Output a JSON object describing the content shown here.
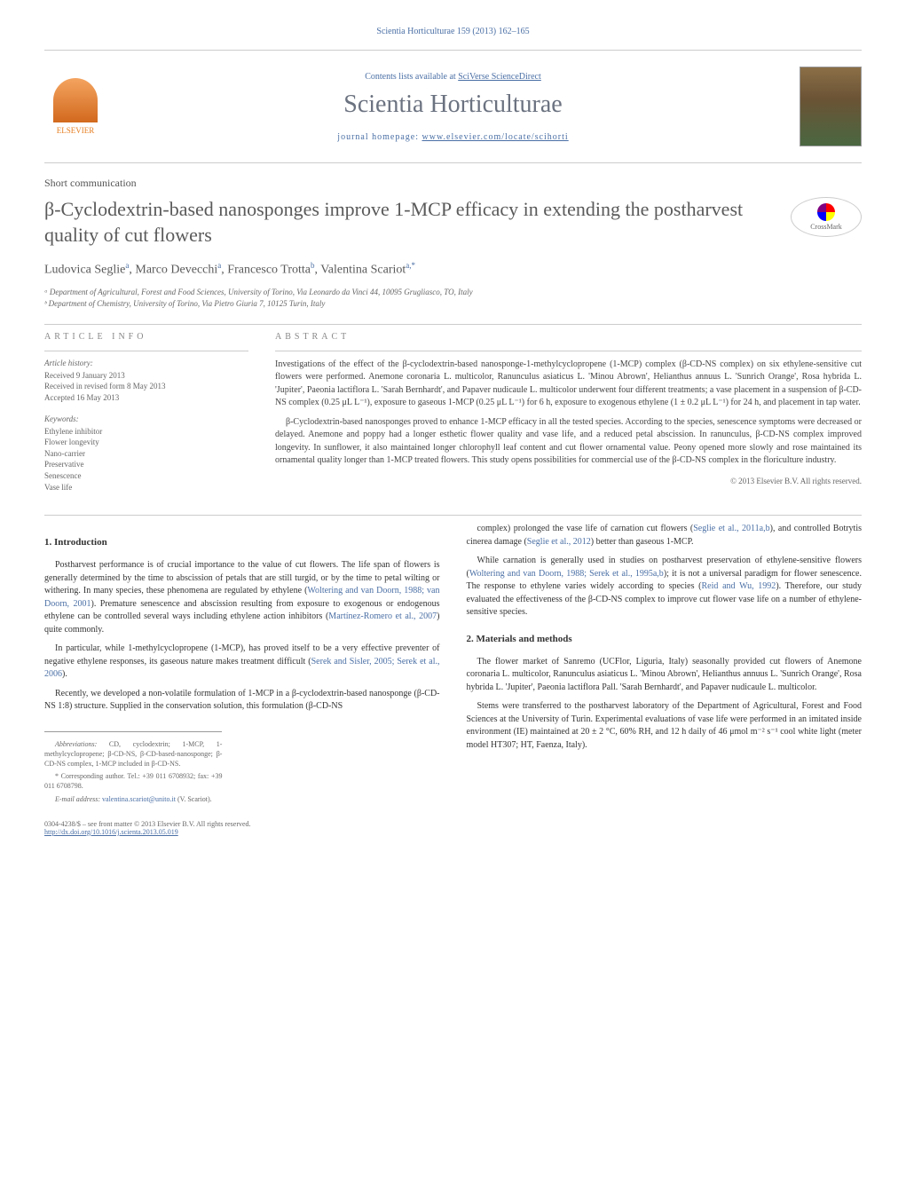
{
  "header": {
    "citation": "Scientia Horticulturae 159 (2013) 162–165",
    "contents_prefix": "Contents lists available at ",
    "contents_link": "SciVerse ScienceDirect",
    "journal_name": "Scientia Horticulturae",
    "homepage_prefix": "journal homepage: ",
    "homepage_url": "www.elsevier.com/locate/scihorti",
    "publisher": "ELSEVIER"
  },
  "article": {
    "type": "Short communication",
    "title": "β-Cyclodextrin-based nanosponges improve 1-MCP efficacy in extending the postharvest quality of cut flowers",
    "crossmark": "CrossMark"
  },
  "authors": {
    "line": "Ludovica Seglie",
    "a1_sup": "a",
    "a2": ", Marco Devecchi",
    "a2_sup": "a",
    "a3": ", Francesco Trotta",
    "a3_sup": "b",
    "a4": ", Valentina Scariot",
    "a4_sup": "a,*"
  },
  "affiliations": {
    "a": "ᵃ Department of Agricultural, Forest and Food Sciences, University of Torino, Via Leonardo da Vinci 44, 10095 Grugliasco, TO, Italy",
    "b": "ᵇ Department of Chemistry, University of Torino, Via Pietro Giuria 7, 10125 Turin, Italy"
  },
  "info": {
    "section_label": "article info",
    "history_label": "Article history:",
    "received": "Received 9 January 2013",
    "revised": "Received in revised form 8 May 2013",
    "accepted": "Accepted 16 May 2013",
    "keywords_label": "Keywords:",
    "keywords": [
      "Ethylene inhibitor",
      "Flower longevity",
      "Nano-carrier",
      "Preservative",
      "Senescence",
      "Vase life"
    ]
  },
  "abstract": {
    "label": "abstract",
    "p1": "Investigations of the effect of the β-cyclodextrin-based nanosponge-1-methylcyclopropene (1-MCP) complex (β-CD-NS complex) on six ethylene-sensitive cut flowers were performed. Anemone coronaria L. multicolor, Ranunculus asiaticus L. 'Minou Abrown', Helianthus annuus L. 'Sunrich Orange', Rosa hybrida L. 'Jupiter', Paeonia lactiflora L. 'Sarah Bernhardt', and Papaver nudicaule L. multicolor underwent four different treatments; a vase placement in a suspension of β-CD-NS complex (0.25 μL L⁻¹), exposure to gaseous 1-MCP (0.25 μL L⁻¹) for 6 h, exposure to exogenous ethylene (1 ± 0.2 μL L⁻¹) for 24 h, and placement in tap water.",
    "p2": "β-Cyclodextrin-based nanosponges proved to enhance 1-MCP efficacy in all the tested species. According to the species, senescence symptoms were decreased or delayed. Anemone and poppy had a longer esthetic flower quality and vase life, and a reduced petal abscission. In ranunculus, β-CD-NS complex improved longevity. In sunflower, it also maintained longer chlorophyll leaf content and cut flower ornamental value. Peony opened more slowly and rose maintained its ornamental quality longer than 1-MCP treated flowers. This study opens possibilities for commercial use of the β-CD-NS complex in the floriculture industry.",
    "copyright": "© 2013 Elsevier B.V. All rights reserved."
  },
  "body": {
    "intro_heading": "1. Introduction",
    "intro_p1": "Postharvest performance is of crucial importance to the value of cut flowers. The life span of flowers is generally determined by the time to abscission of petals that are still turgid, or by the time to petal wilting or withering. In many species, these phenomena are regulated by ethylene (",
    "intro_p1_link1": "Woltering and van Doorn, 1988; van Doorn, 2001",
    "intro_p1_cont": "). Premature senescence and abscission resulting from exposure to exogenous or endogenous ethylene can be controlled several ways including ethylene action inhibitors (",
    "intro_p1_link2": "Martínez-Romero et al., 2007",
    "intro_p1_end": ") quite commonly.",
    "intro_p2": "In particular, while 1-methylcyclopropene (1-MCP), has proved itself to be a very effective preventer of negative ethylene responses, its gaseous nature makes treatment difficult (",
    "intro_p2_link": "Serek and Sisler, 2005; Serek et al., 2006",
    "intro_p2_end": ").",
    "intro_p3": "Recently, we developed a non-volatile formulation of 1-MCP in a β-cyclodextrin-based nanosponge (β-CD-NS 1:8) structure. Supplied in the conservation solution, this formulation (β-CD-NS",
    "intro_p3_cont": "complex) prolonged the vase life of carnation cut flowers (",
    "intro_p3_link1": "Seglie et al., 2011a,b",
    "intro_p3_mid": "), and controlled Botrytis cinerea damage (",
    "intro_p3_link2": "Seglie et al., 2012",
    "intro_p3_end": ") better than gaseous 1-MCP.",
    "intro_p4": "While carnation is generally used in studies on postharvest preservation of ethylene-sensitive flowers (",
    "intro_p4_link1": "Woltering and van Doorn, 1988; Serek et al., 1995a,b",
    "intro_p4_mid": "); it is not a universal paradigm for flower senescence. The response to ethylene varies widely according to species (",
    "intro_p4_link2": "Reid and Wu, 1992",
    "intro_p4_end": "). Therefore, our study evaluated the effectiveness of the β-CD-NS complex to improve cut flower vase life on a number of ethylene-sensitive species.",
    "methods_heading": "2. Materials and methods",
    "methods_p1": "The flower market of Sanremo (UCFlor, Liguria, Italy) seasonally provided cut flowers of Anemone coronaria L. multicolor, Ranunculus asiaticus L. 'Minou Abrown', Helianthus annuus L. 'Sunrich Orange', Rosa hybrida L. 'Jupiter', Paeonia lactiflora Pall. 'Sarah Bernhardt', and Papaver nudicaule L. multicolor.",
    "methods_p2": "Stems were transferred to the postharvest laboratory of the Department of Agricultural, Forest and Food Sciences at the University of Turin. Experimental evaluations of vase life were performed in an imitated inside environment (IE) maintained at 20 ± 2 °C, 60% RH, and 12 h daily of 46 μmol m⁻² s⁻¹ cool white light (meter model HT307; HT, Faenza, Italy)."
  },
  "footnotes": {
    "abbrev_label": "Abbreviations: ",
    "abbrev": "CD, cyclodextrin; 1-MCP, 1-methylcyclopropene; β-CD-NS, β-CD-based-nanosponge; β-CD-NS complex, 1-MCP included in β-CD-NS.",
    "corr_label": "* Corresponding author. ",
    "corr": "Tel.: +39 011 6708932; fax: +39 011 6708798.",
    "email_label": "E-mail address: ",
    "email": "valentina.scariot@unito.it",
    "email_suffix": " (V. Scariot)."
  },
  "footer": {
    "issn": "0304-4238/$ – see front matter © 2013 Elsevier B.V. All rights reserved.",
    "doi": "http://dx.doi.org/10.1016/j.scienta.2013.05.019"
  },
  "colors": {
    "link": "#4a6fa5",
    "text": "#333333",
    "heading": "#5a5a5a",
    "muted": "#666666"
  }
}
